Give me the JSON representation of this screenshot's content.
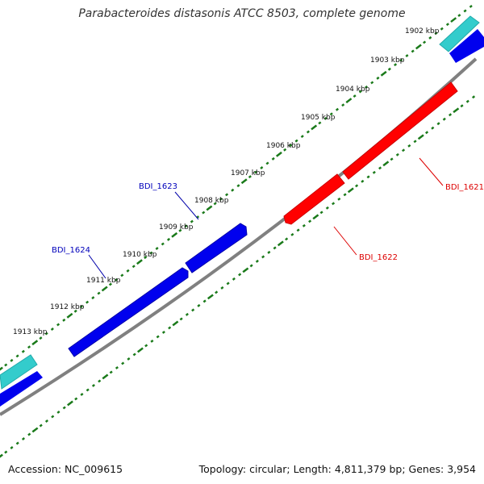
{
  "title": "Parabacteroides distasonis ATCC 8503, complete genome",
  "accession": "Accession: NC_009615",
  "summary": "Topology: circular; Length: 4,811,379 bp; Genes: 3,954",
  "kbp_labels": [
    "1902 kbp",
    "1903 kbp",
    "1904 kbp",
    "1905 kbp",
    "1906 kbp",
    "1907 kbp",
    "1908 kbp",
    "1909 kbp",
    "1910 kbp",
    "1911 kbp",
    "1912 kbp",
    "1913 kbp"
  ],
  "genes": [
    {
      "name": "BDI_1621",
      "strand": "reverse",
      "color": "#dd0000"
    },
    {
      "name": "BDI_1622",
      "strand": "reverse",
      "color": "#dd0000"
    },
    {
      "name": "BDI_1623",
      "strand": "forward",
      "color": "#0000bb"
    },
    {
      "name": "BDI_1624",
      "strand": "forward",
      "color": "#0000bb"
    }
  ],
  "colors": {
    "forward": "#0000ee",
    "reverse": "#ff0000",
    "neighbor": "#33cccc",
    "backbone": "#808080",
    "ticks": "#1a7a1a"
  }
}
